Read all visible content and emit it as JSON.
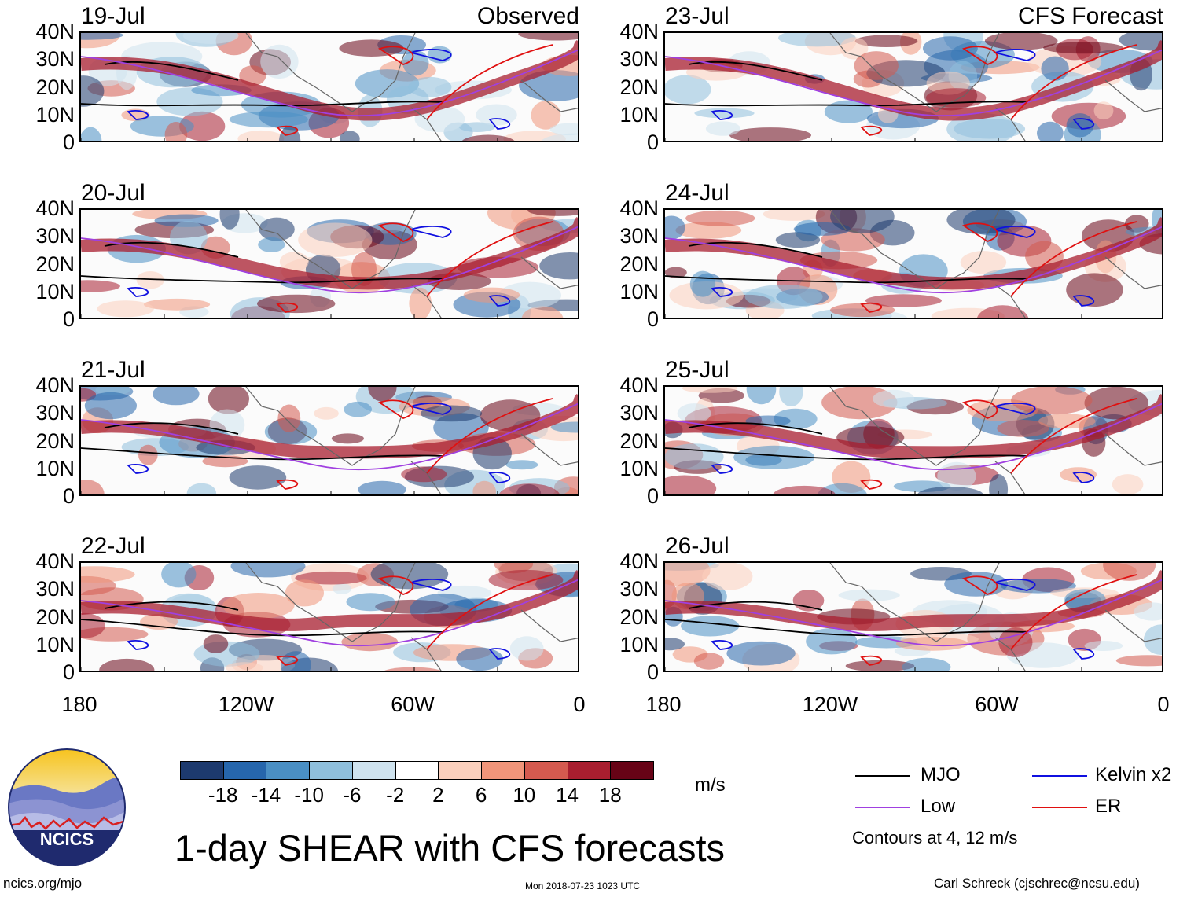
{
  "chart_data": {
    "type": "heatmap",
    "title": "1-day SHEAR with CFS forecasts",
    "units": "m/s",
    "y_ticks": [
      "40N",
      "30N",
      "20N",
      "10N",
      "0"
    ],
    "x_ticks": [
      "180",
      "120W",
      "60W",
      "0"
    ],
    "colorbar": {
      "ticks": [
        "-18",
        "-14",
        "-10",
        "-6",
        "-2",
        "2",
        "6",
        "10",
        "14",
        "18"
      ],
      "colors": [
        "#1d3a6e",
        "#2666ac",
        "#4a8fc4",
        "#8fbfdc",
        "#cfe3ef",
        "#ffffff",
        "#fbd0bd",
        "#f1957a",
        "#d45a4f",
        "#a81e2f",
        "#670316"
      ]
    },
    "panels": [
      {
        "date": "19-Jul",
        "tag": "Observed"
      },
      {
        "date": "20-Jul",
        "tag": ""
      },
      {
        "date": "21-Jul",
        "tag": ""
      },
      {
        "date": "22-Jul",
        "tag": ""
      },
      {
        "date": "23-Jul",
        "tag": "CFS Forecast"
      },
      {
        "date": "24-Jul",
        "tag": ""
      },
      {
        "date": "25-Jul",
        "tag": ""
      },
      {
        "date": "26-Jul",
        "tag": ""
      }
    ],
    "legend": [
      {
        "label": "MJO",
        "color": "#000000"
      },
      {
        "label": "Kelvin x2",
        "color": "#1010e0"
      },
      {
        "label": "Low",
        "color": "#a040e0"
      },
      {
        "label": "ER",
        "color": "#e01010"
      }
    ],
    "contour_note": "Contours at 4, 12 m/s"
  },
  "logo": {
    "text": "NCICS"
  },
  "footer": {
    "left": "ncics.org/mjo",
    "center": "Mon 2018-07-23 1023 UTC",
    "right": "Carl Schreck (cjschrec@ncsu.edu)"
  }
}
